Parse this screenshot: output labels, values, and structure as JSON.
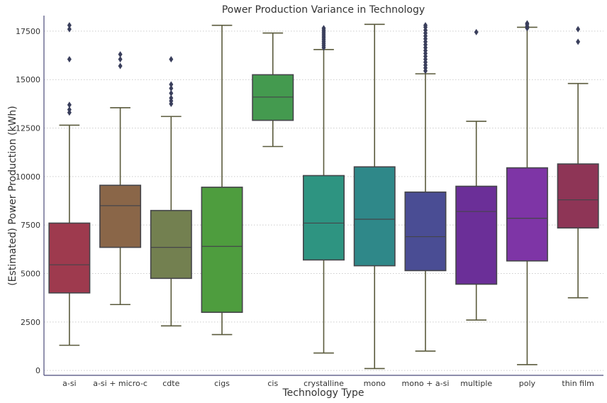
{
  "chart_data": {
    "type": "box",
    "title": "Power Production Variance in Technology",
    "xlabel": "Technology Type",
    "ylabel": "(Estimated) Power Production (kWh)",
    "ylim": [
      -250,
      18300
    ],
    "yticks": [
      0,
      2500,
      5000,
      7500,
      10000,
      12500,
      15000,
      17500
    ],
    "grid": "y-dotted",
    "categories": [
      "a-si",
      "a-si + micro-c",
      "cdte",
      "cigs",
      "cis",
      "crystalline",
      "mono",
      "mono + a-si",
      "multiple",
      "poly",
      "thin film"
    ],
    "boxes": [
      {
        "category": "a-si",
        "color": "#9e3a4e",
        "whisker_low": 1300,
        "q1": 4000,
        "median": 5450,
        "q3": 7600,
        "whisker_high": 12650,
        "outliers": [
          13300,
          13450,
          13700,
          16050,
          17600,
          17800
        ]
      },
      {
        "category": "a-si + micro-c",
        "color": "#8a6648",
        "whisker_low": 3400,
        "q1": 6350,
        "median": 8500,
        "q3": 9550,
        "whisker_high": 13550,
        "outliers": [
          15700,
          16050,
          16300
        ]
      },
      {
        "category": "cdte",
        "color": "#738050",
        "whisker_low": 2300,
        "q1": 4750,
        "median": 6350,
        "q3": 8250,
        "whisker_high": 13100,
        "outliers": [
          13750,
          13900,
          14050,
          14300,
          14550,
          14750,
          16050
        ]
      },
      {
        "category": "cigs",
        "color": "#4e9d3e",
        "whisker_low": 1850,
        "q1": 3000,
        "median": 6400,
        "q3": 9450,
        "whisker_high": 17800,
        "outliers": []
      },
      {
        "category": "cis",
        "color": "#449a4f",
        "whisker_low": 11550,
        "q1": 12900,
        "median": 14100,
        "q3": 15250,
        "whisker_high": 17400,
        "outliers": []
      },
      {
        "category": "crystalline",
        "color": "#2e9481",
        "whisker_low": 900,
        "q1": 5700,
        "median": 7600,
        "q3": 10050,
        "whisker_high": 16550,
        "outliers": [
          16650,
          16750,
          16850,
          16950,
          17050,
          17150,
          17250,
          17350,
          17450,
          17550,
          17650
        ]
      },
      {
        "category": "mono",
        "color": "#2f8889",
        "whisker_low": 100,
        "q1": 5400,
        "median": 7800,
        "q3": 10500,
        "whisker_high": 17850,
        "outliers": []
      },
      {
        "category": "mono + a-si",
        "color": "#4a4d94",
        "whisker_low": 1000,
        "q1": 5150,
        "median": 6900,
        "q3": 9200,
        "whisker_high": 15300,
        "outliers": [
          15450,
          15600,
          15750,
          15900,
          16050,
          16200,
          16350,
          16500,
          16650,
          16800,
          16950,
          17100,
          17250,
          17400,
          17550,
          17700,
          17800
        ]
      },
      {
        "category": "multiple",
        "color": "#6b2f98",
        "whisker_low": 2600,
        "q1": 4450,
        "median": 8200,
        "q3": 9500,
        "whisker_high": 12850,
        "outliers": [
          17450
        ]
      },
      {
        "category": "poly",
        "color": "#7e35a6",
        "whisker_low": 300,
        "q1": 5650,
        "median": 7850,
        "q3": 10450,
        "whisker_high": 17700,
        "outliers": [
          17650,
          17750,
          17850,
          17900
        ]
      },
      {
        "category": "thin film",
        "color": "#8e3556",
        "whisker_low": 3750,
        "q1": 7350,
        "median": 8800,
        "q3": 10650,
        "whisker_high": 14800,
        "outliers": [
          16950,
          17600
        ]
      }
    ]
  }
}
